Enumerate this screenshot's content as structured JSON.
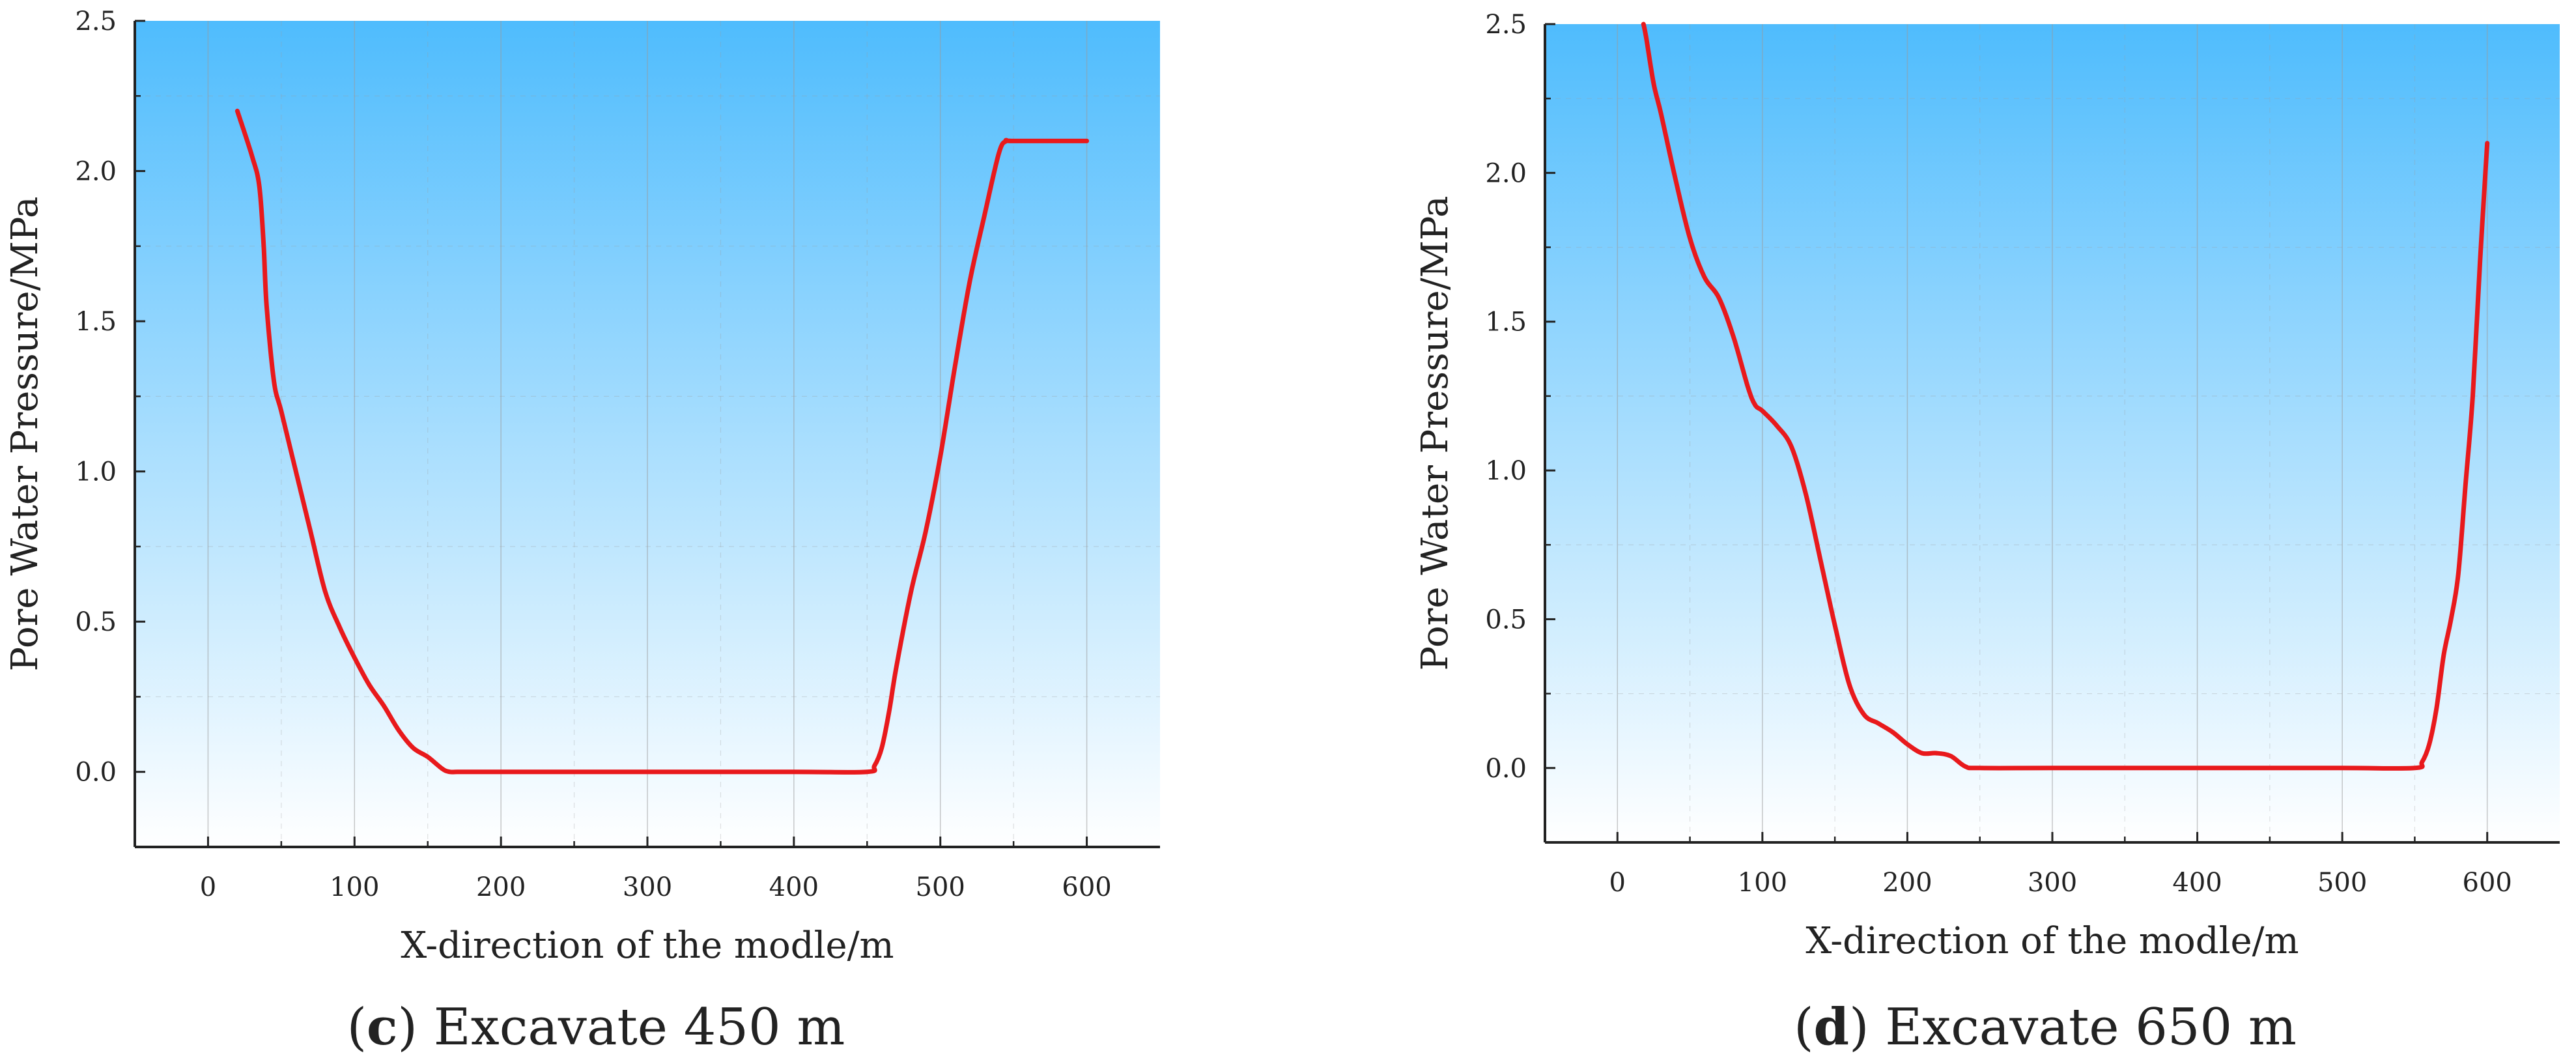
{
  "charts": [
    {
      "caption": {
        "open": "(",
        "letter": "c",
        "close": ") Excavate 450 m"
      }
    },
    {
      "caption": {
        "open": "(",
        "letter": "d",
        "close": ") Excavate 650 m"
      }
    }
  ],
  "colors": {
    "background_top": "#4FBCFD",
    "background_bottom": "#FFFFFF",
    "series": "#E8191C",
    "axis": "#222222",
    "grid": "#9A9A9A"
  },
  "chart_data": [
    {
      "type": "line",
      "xlabel": "X-direction of the modle/m",
      "ylabel": "Pore Water Pressure/MPa",
      "xlim": [
        -50,
        650
      ],
      "ylim": [
        -0.25,
        2.5
      ],
      "xticks": [
        0,
        100,
        200,
        300,
        400,
        500,
        600
      ],
      "xtick_labels": [
        "0",
        "100",
        "200",
        "300",
        "400",
        "500",
        "600"
      ],
      "yticks": [
        0.0,
        0.5,
        1.0,
        1.5,
        2.0,
        2.5
      ],
      "ytick_labels": [
        "0.0",
        "0.5",
        "1.0",
        "1.5",
        "2.0",
        "2.5"
      ],
      "grid": true,
      "series": [
        {
          "x": [
            20,
            30,
            35,
            38,
            40,
            45,
            50,
            60,
            70,
            80,
            90,
            100,
            110,
            120,
            130,
            140,
            150,
            160,
            165,
            170,
            175,
            200,
            300,
            400,
            450,
            455,
            460,
            465,
            470,
            480,
            490,
            500,
            510,
            520,
            530,
            540,
            545,
            550,
            600
          ],
          "y": [
            2.2,
            2.05,
            1.95,
            1.75,
            1.55,
            1.3,
            1.2,
            1.0,
            0.8,
            0.6,
            0.48,
            0.38,
            0.29,
            0.22,
            0.14,
            0.08,
            0.05,
            0.01,
            0.0,
            0.0,
            0.0,
            0.0,
            0.0,
            0.0,
            0.0,
            0.02,
            0.08,
            0.2,
            0.35,
            0.6,
            0.8,
            1.05,
            1.35,
            1.63,
            1.85,
            2.06,
            2.1,
            2.1,
            2.1
          ]
        }
      ]
    },
    {
      "type": "line",
      "xlabel": "X-direction of the modle/m",
      "ylabel": "Pore Water Pressure/MPa",
      "xlim": [
        -50,
        650
      ],
      "ylim": [
        -0.25,
        2.5
      ],
      "xticks": [
        0,
        100,
        200,
        300,
        400,
        500,
        600
      ],
      "xtick_labels": [
        "0",
        "100",
        "200",
        "300",
        "400",
        "500",
        "600"
      ],
      "yticks": [
        0.0,
        0.5,
        1.0,
        1.5,
        2.0,
        2.5
      ],
      "ytick_labels": [
        "0.0",
        "0.5",
        "1.0",
        "1.5",
        "2.0",
        "2.5"
      ],
      "grid": true,
      "series": [
        {
          "x": [
            18,
            20,
            25,
            30,
            40,
            50,
            60,
            70,
            80,
            90,
            95,
            100,
            110,
            120,
            130,
            140,
            150,
            160,
            170,
            180,
            190,
            200,
            210,
            220,
            230,
            240,
            250,
            300,
            400,
            500,
            550,
            555,
            560,
            565,
            570,
            575,
            580,
            585,
            590,
            595,
            600
          ],
          "y": [
            2.5,
            2.45,
            2.3,
            2.2,
            1.98,
            1.78,
            1.65,
            1.58,
            1.45,
            1.28,
            1.22,
            1.2,
            1.15,
            1.08,
            0.92,
            0.7,
            0.48,
            0.28,
            0.18,
            0.15,
            0.12,
            0.08,
            0.05,
            0.05,
            0.04,
            0.005,
            0.0,
            0.0,
            0.0,
            0.0,
            0.0,
            0.02,
            0.08,
            0.2,
            0.38,
            0.5,
            0.65,
            0.95,
            1.25,
            1.7,
            2.1
          ]
        }
      ]
    }
  ]
}
